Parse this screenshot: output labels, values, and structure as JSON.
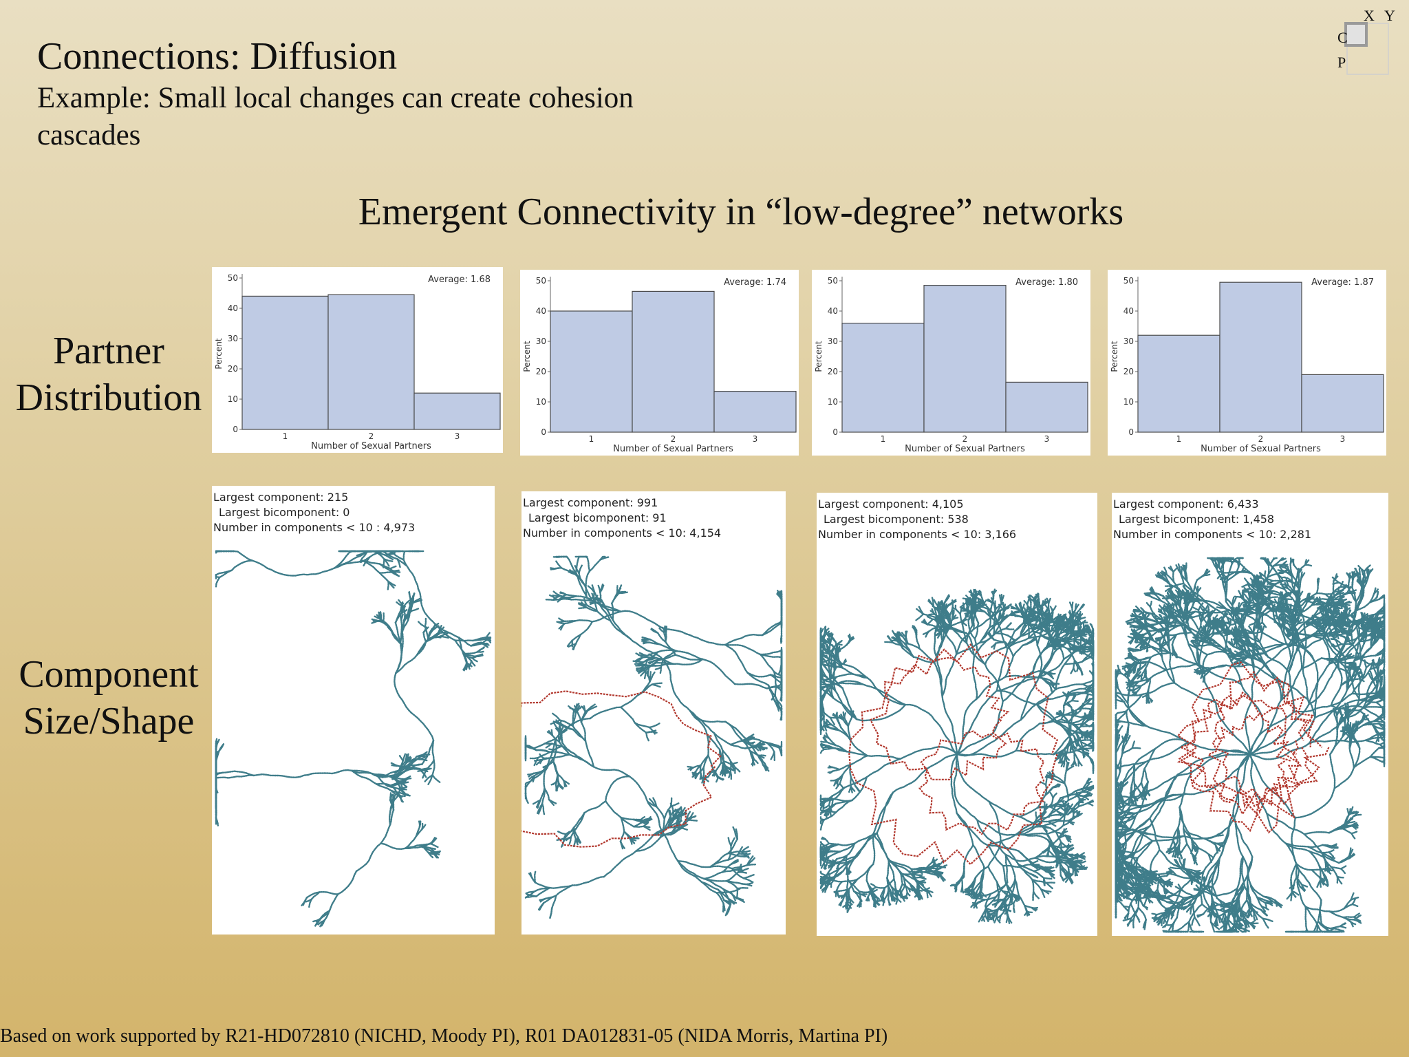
{
  "title": "Connections: Diffusion",
  "subtitle": "Example: Small local changes can create cohesion cascades",
  "heading": "Emergent Connectivity in “low-degree” networks",
  "row_labels": {
    "partner": [
      "Partner",
      "Distribution"
    ],
    "component": [
      "Component",
      "Size/Shape"
    ]
  },
  "corner_icon": {
    "labels": [
      "X",
      "Y",
      "C",
      "P"
    ]
  },
  "chart_data": [
    {
      "type": "bar",
      "categories": [
        "1",
        "2",
        "3"
      ],
      "values": [
        44,
        44.5,
        12
      ],
      "average_label": "Average: 1.68",
      "xlabel": "Number of Sexual Partners",
      "ylabel": "Percent",
      "ylim": [
        0,
        50
      ],
      "yticks": [
        "0",
        "10",
        "20",
        "30",
        "40",
        "50"
      ]
    },
    {
      "type": "bar",
      "categories": [
        "1",
        "2",
        "3"
      ],
      "values": [
        40,
        46.5,
        13.5
      ],
      "average_label": "Average: 1.74",
      "xlabel": "Number of Sexual Partners",
      "ylabel": "Percent",
      "ylim": [
        0,
        50
      ],
      "yticks": [
        "0",
        "10",
        "20",
        "30",
        "40",
        "50"
      ]
    },
    {
      "type": "bar",
      "categories": [
        "1",
        "2",
        "3"
      ],
      "values": [
        36,
        48.5,
        16.5
      ],
      "average_label": "Average: 1.80",
      "xlabel": "Number of Sexual Partners",
      "ylabel": "Percent",
      "ylim": [
        0,
        50
      ],
      "yticks": [
        "0",
        "10",
        "20",
        "30",
        "40",
        "50"
      ]
    },
    {
      "type": "bar",
      "categories": [
        "1",
        "2",
        "3"
      ],
      "values": [
        32,
        49.5,
        19
      ],
      "average_label": "Average: 1.87",
      "xlabel": "Number of Sexual Partners",
      "ylabel": "Percent",
      "ylim": [
        0,
        50
      ],
      "yticks": [
        "0",
        "10",
        "20",
        "30",
        "40",
        "50"
      ]
    }
  ],
  "components": [
    {
      "largest": "Largest component: 215",
      "bicomponent": "Largest bicomponent: 0",
      "small": "Number in components < 10 : 4,973"
    },
    {
      "largest": "Largest component: 991",
      "bicomponent": "Largest bicomponent: 91",
      "small": "Number in components < 10: 4,154"
    },
    {
      "largest": "Largest component: 4,105",
      "bicomponent": "Largest bicomponent: 538",
      "small": "Number in components < 10: 3,166"
    },
    {
      "largest": "Largest component: 6,433",
      "bicomponent": "Largest bicomponent: 1,458",
      "small": "Number in components < 10: 2,281"
    }
  ],
  "colors": {
    "bar_fill": "#bfcbe4",
    "bar_stroke": "#4a4a4a",
    "tree": "#3f7d8a",
    "bicomponent": "#b2392f"
  },
  "footer": "Based on work supported by R21-HD072810 (NICHD, Moody PI),  R01 DA012831-05 (NIDA Morris, Martina PI)"
}
